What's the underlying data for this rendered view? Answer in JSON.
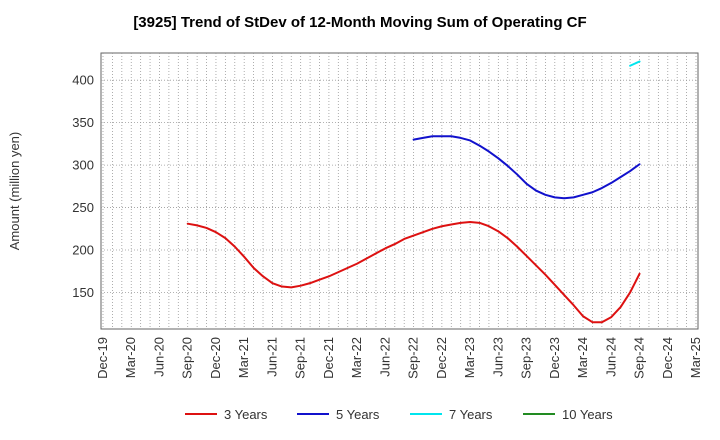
{
  "chart_data": {
    "type": "line",
    "title": "[3925]  Trend of StDev of 12-Month Moving Sum of Operating CF",
    "xlabel": "",
    "ylabel": "Amount (million yen)",
    "ylim": [
      107,
      432
    ],
    "yticks": [
      150,
      200,
      250,
      300,
      350,
      400
    ],
    "x_ticks": [
      "Dec-19",
      "Mar-20",
      "Jun-20",
      "Sep-20",
      "Dec-20",
      "Mar-21",
      "Jun-21",
      "Sep-21",
      "Dec-21",
      "Mar-22",
      "Jun-22",
      "Sep-22",
      "Dec-22",
      "Mar-23",
      "Jun-23",
      "Sep-23",
      "Dec-23",
      "Mar-24",
      "Jun-24",
      "Sep-24",
      "Dec-24",
      "Mar-25"
    ],
    "x_start": "2019-12",
    "grid": true,
    "legend_position": "bottom",
    "series": [
      {
        "name": "3 Years",
        "color": "#dd1111",
        "points": [
          [
            "2020-09",
            231
          ],
          [
            "2020-10",
            229
          ],
          [
            "2020-11",
            226
          ],
          [
            "2020-12",
            221
          ],
          [
            "2021-01",
            214
          ],
          [
            "2021-02",
            204
          ],
          [
            "2021-03",
            192
          ],
          [
            "2021-04",
            179
          ],
          [
            "2021-05",
            169
          ],
          [
            "2021-06",
            161
          ],
          [
            "2021-07",
            157
          ],
          [
            "2021-08",
            156
          ],
          [
            "2021-09",
            158
          ],
          [
            "2021-10",
            161
          ],
          [
            "2021-11",
            165
          ],
          [
            "2021-12",
            169
          ],
          [
            "2022-01",
            174
          ],
          [
            "2022-02",
            179
          ],
          [
            "2022-03",
            184
          ],
          [
            "2022-04",
            190
          ],
          [
            "2022-05",
            196
          ],
          [
            "2022-06",
            202
          ],
          [
            "2022-07",
            207
          ],
          [
            "2022-08",
            213
          ],
          [
            "2022-09",
            217
          ],
          [
            "2022-10",
            221
          ],
          [
            "2022-11",
            225
          ],
          [
            "2022-12",
            228
          ],
          [
            "2023-01",
            230
          ],
          [
            "2023-02",
            232
          ],
          [
            "2023-03",
            233
          ],
          [
            "2023-04",
            232
          ],
          [
            "2023-05",
            228
          ],
          [
            "2023-06",
            222
          ],
          [
            "2023-07",
            214
          ],
          [
            "2023-08",
            204
          ],
          [
            "2023-09",
            193
          ],
          [
            "2023-10",
            182
          ],
          [
            "2023-11",
            171
          ],
          [
            "2023-12",
            159
          ],
          [
            "2024-01",
            147
          ],
          [
            "2024-02",
            135
          ],
          [
            "2024-03",
            122
          ],
          [
            "2024-04",
            115
          ],
          [
            "2024-05",
            115
          ],
          [
            "2024-06",
            121
          ],
          [
            "2024-07",
            133
          ],
          [
            "2024-08",
            150
          ],
          [
            "2024-09",
            172
          ]
        ]
      },
      {
        "name": "5 Years",
        "color": "#1111cc",
        "points": [
          [
            "2022-09",
            330
          ],
          [
            "2022-10",
            332
          ],
          [
            "2022-11",
            334
          ],
          [
            "2022-12",
            334
          ],
          [
            "2023-01",
            334
          ],
          [
            "2023-02",
            332
          ],
          [
            "2023-03",
            329
          ],
          [
            "2023-04",
            323
          ],
          [
            "2023-05",
            316
          ],
          [
            "2023-06",
            308
          ],
          [
            "2023-07",
            299
          ],
          [
            "2023-08",
            289
          ],
          [
            "2023-09",
            278
          ],
          [
            "2023-10",
            270
          ],
          [
            "2023-11",
            265
          ],
          [
            "2023-12",
            262
          ],
          [
            "2024-01",
            261
          ],
          [
            "2024-02",
            262
          ],
          [
            "2024-03",
            265
          ],
          [
            "2024-04",
            268
          ],
          [
            "2024-05",
            273
          ],
          [
            "2024-06",
            279
          ],
          [
            "2024-07",
            286
          ],
          [
            "2024-08",
            293
          ],
          [
            "2024-09",
            301
          ]
        ]
      },
      {
        "name": "7 Years",
        "color": "#00e5ee",
        "points": [
          [
            "2024-08",
            417
          ],
          [
            "2024-09",
            422
          ]
        ]
      },
      {
        "name": "10 Years",
        "color": "#228b22",
        "points": []
      }
    ]
  }
}
